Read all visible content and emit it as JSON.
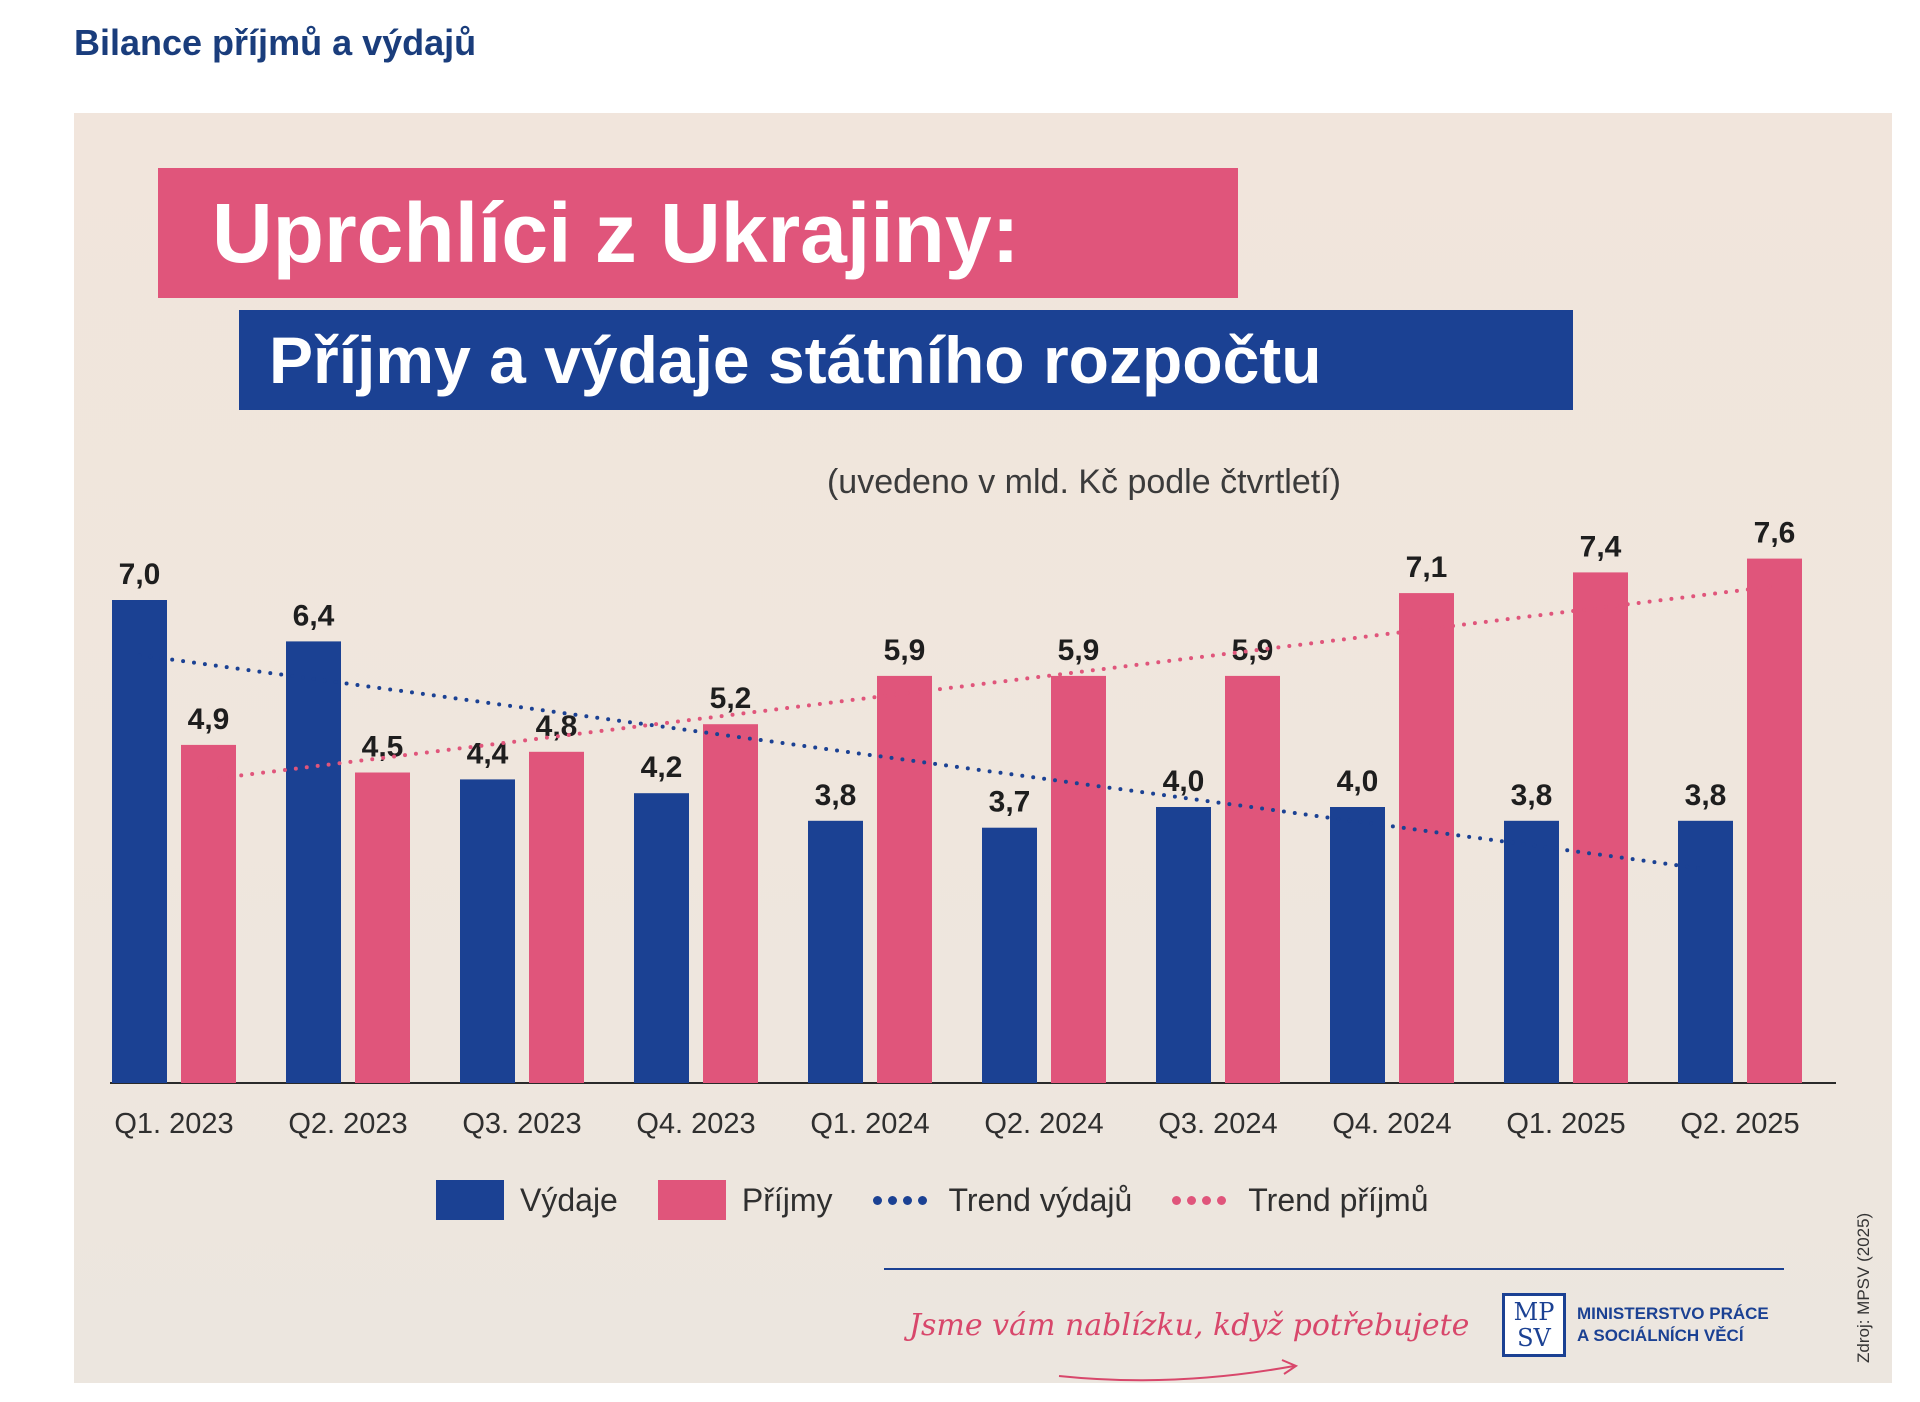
{
  "page_heading": "Bilance příjmů a výdajů",
  "title_main": "Uprchlíci z Ukrajiny:",
  "title_sub": "Příjmy a výdaje státního rozpočtu",
  "subtitle": "(uvedeno v mld. Kč podle čtvrtletí)",
  "colors": {
    "vydaje": "#1b4193",
    "prijmy": "#e0557b",
    "trend_vydaju": "#1b4193",
    "trend_prijmu": "#e0557b"
  },
  "chart_data": {
    "type": "bar",
    "title": "Uprchlíci z Ukrajiny: Příjmy a výdaje státního rozpočtu",
    "subtitle": "(uvedeno v mld. Kč podle čtvrtletí)",
    "xlabel": "",
    "ylabel": "",
    "ylim": [
      0,
      8
    ],
    "grid": false,
    "legend_position": "bottom",
    "categories": [
      "Q1. 2023",
      "Q2. 2023",
      "Q3. 2023",
      "Q4. 2023",
      "Q1. 2024",
      "Q2. 2024",
      "Q3. 2024",
      "Q4. 2024",
      "Q1. 2025",
      "Q2. 2025"
    ],
    "series": [
      {
        "name": "Výdaje",
        "values": [
          7.0,
          6.4,
          4.4,
          4.2,
          3.8,
          3.7,
          4.0,
          4.0,
          3.8,
          3.8
        ],
        "labels": [
          "7,0",
          "6,4",
          "4,4",
          "4,2",
          "3,8",
          "3,7",
          "4,0",
          "4,0",
          "3,8",
          "3,8"
        ]
      },
      {
        "name": "Příjmy",
        "values": [
          4.9,
          4.5,
          4.8,
          5.2,
          5.9,
          5.9,
          5.9,
          7.1,
          7.4,
          7.6
        ],
        "labels": [
          "4,9",
          "4,5",
          "4,8",
          "5,2",
          "5,9",
          "5,9",
          "5,9",
          "7,1",
          "7,4",
          "7,6"
        ]
      }
    ],
    "trends": [
      {
        "name": "Trend výdajů",
        "series": "Výdaje",
        "style": "dotted",
        "start": 6.2,
        "end": 3.1
      },
      {
        "name": "Trend příjmů",
        "series": "Příjmy",
        "style": "dotted",
        "start": 4.4,
        "end": 7.2
      }
    ]
  },
  "legend": {
    "vydaje": "Výdaje",
    "prijmy": "Příjmy",
    "trend_vydaju": "Trend výdajů",
    "trend_prijmu": "Trend příjmů"
  },
  "footer": {
    "slogan": "Jsme vám nablízku, když potřebujete",
    "logo_letters_top": "MP",
    "logo_letters_bottom": "SV",
    "logo_line1": "MINISTERSTVO PRÁCE",
    "logo_line2": "A SOCIÁLNÍCH VĚCÍ",
    "source": "Zdroj: MPSV (2025)"
  }
}
